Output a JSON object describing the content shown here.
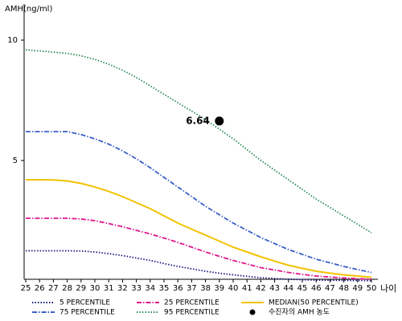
{
  "chart_data": {
    "type": "line",
    "y_label": "AMH(ng/ml)",
    "x_label": "나이",
    "x": [
      25,
      26,
      27,
      28,
      29,
      30,
      31,
      32,
      33,
      34,
      35,
      36,
      37,
      38,
      39,
      40,
      41,
      42,
      43,
      44,
      45,
      46,
      47,
      48,
      49,
      50
    ],
    "xlim": [
      25,
      50
    ],
    "xticks": [
      25,
      26,
      27,
      28,
      29,
      30,
      31,
      32,
      33,
      34,
      35,
      36,
      37,
      38,
      39,
      40,
      41,
      42,
      43,
      44,
      45,
      46,
      47,
      48,
      49,
      50
    ],
    "ylim": [
      0,
      11.5
    ],
    "yticks": [
      5,
      10
    ],
    "series": [
      {
        "name": "5 PERCENTILE",
        "color": "#1a1a80",
        "style": "dotted",
        "values": [
          1.25,
          1.25,
          1.25,
          1.25,
          1.24,
          1.2,
          1.13,
          1.05,
          0.95,
          0.85,
          0.72,
          0.6,
          0.5,
          0.4,
          0.32,
          0.25,
          0.19,
          0.13,
          0.1,
          0.07,
          0.05,
          0.03,
          0.025,
          0.02,
          0.015,
          0.01
        ]
      },
      {
        "name": "25 PERCENTILE",
        "color": "#e0148c",
        "style": "dashdot",
        "values": [
          2.6,
          2.6,
          2.6,
          2.6,
          2.57,
          2.5,
          2.38,
          2.25,
          2.1,
          1.95,
          1.78,
          1.6,
          1.4,
          1.2,
          1.02,
          0.85,
          0.7,
          0.55,
          0.45,
          0.35,
          0.27,
          0.2,
          0.16,
          0.12,
          0.09,
          0.07
        ]
      },
      {
        "name": "MEDIAN(50 PERCENTILE)",
        "color": "#f2c200",
        "style": "solid",
        "values": [
          4.2,
          4.2,
          4.19,
          4.15,
          4.05,
          3.9,
          3.72,
          3.5,
          3.25,
          3.0,
          2.7,
          2.4,
          2.15,
          1.9,
          1.65,
          1.4,
          1.2,
          1.0,
          0.82,
          0.65,
          0.52,
          0.4,
          0.32,
          0.25,
          0.2,
          0.15
        ]
      },
      {
        "name": "75 PERCENTILE",
        "color": "#3a5fc8",
        "style": "dashdot",
        "values": [
          6.2,
          6.2,
          6.2,
          6.2,
          6.08,
          5.9,
          5.68,
          5.4,
          5.07,
          4.7,
          4.3,
          3.9,
          3.5,
          3.1,
          2.75,
          2.4,
          2.1,
          1.8,
          1.55,
          1.3,
          1.1,
          0.9,
          0.75,
          0.6,
          0.47,
          0.35
        ]
      },
      {
        "name": "95 PERCENTILE",
        "color": "#2e8b57",
        "style": "dotted",
        "values": [
          9.6,
          9.55,
          9.5,
          9.45,
          9.35,
          9.2,
          9.0,
          8.75,
          8.45,
          8.1,
          7.75,
          7.4,
          7.05,
          6.7,
          6.3,
          5.9,
          5.45,
          5.0,
          4.6,
          4.2,
          3.8,
          3.4,
          3.05,
          2.7,
          2.35,
          2.0
        ]
      }
    ],
    "highlight": {
      "name": "수진자의 AMH 농도",
      "color": "#000000",
      "x": 39,
      "y": 6.64
    }
  }
}
